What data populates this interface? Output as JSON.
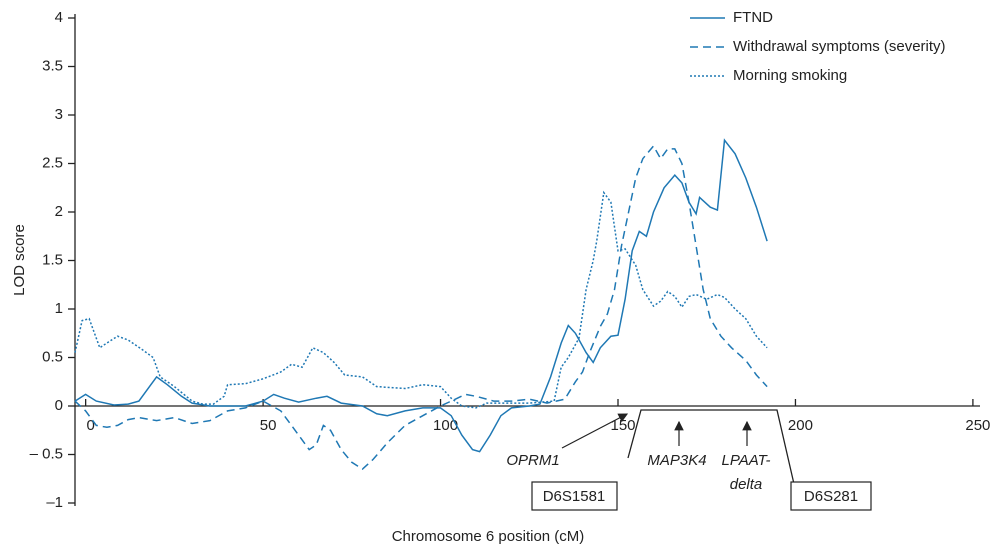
{
  "chart_data": {
    "type": "line",
    "xlabel": "Chromosome 6 position (cM)",
    "ylabel": "LOD score",
    "xlim": [
      -3,
      252
    ],
    "ylim": [
      -1,
      4
    ],
    "xticks": [
      0,
      50,
      100,
      150,
      200,
      250
    ],
    "yticks": [
      {
        "value": -1,
        "label": "–1"
      },
      {
        "value": -0.5,
        "label": "– 0.5"
      },
      0,
      0.5,
      1,
      1.5,
      2,
      2.5,
      3,
      3.5,
      4
    ],
    "legend": "upper right",
    "series": [
      {
        "name": "FTND",
        "color": "#1f78b4",
        "dash": "solid",
        "x": [
          -3,
          0,
          3,
          8,
          12,
          15,
          18,
          20,
          23,
          27,
          30,
          35,
          45,
          50,
          53,
          56,
          60,
          65,
          68,
          72,
          78,
          82,
          85,
          90,
          95,
          100,
          103,
          106,
          109,
          111,
          114,
          117,
          120,
          125,
          128,
          131,
          134,
          136,
          138,
          141,
          143,
          145,
          148,
          150,
          152,
          154,
          156,
          158,
          160,
          163,
          166,
          168,
          170,
          172,
          173,
          176,
          178,
          180,
          183,
          186,
          189,
          192
        ],
        "y": [
          0.05,
          0.12,
          0.05,
          0.01,
          0.02,
          0.05,
          0.2,
          0.3,
          0.22,
          0.1,
          0.03,
          0,
          0,
          0.05,
          0.12,
          0.08,
          0.04,
          0.08,
          0.1,
          0.03,
          0,
          -0.08,
          -0.1,
          -0.05,
          -0.02,
          -0.02,
          -0.1,
          -0.3,
          -0.45,
          -0.47,
          -0.3,
          -0.1,
          -0.02,
          0,
          0.02,
          0.3,
          0.65,
          0.83,
          0.75,
          0.55,
          0.45,
          0.6,
          0.72,
          0.73,
          1.1,
          1.6,
          1.8,
          1.75,
          2.0,
          2.25,
          2.38,
          2.3,
          2.1,
          1.98,
          2.15,
          2.05,
          2.02,
          2.74,
          2.6,
          2.35,
          2.05,
          1.7
        ]
      },
      {
        "name": "Withdrawal symptoms (severity)",
        "color": "#1f78b4",
        "dash": "dashed",
        "x": [
          -3,
          0,
          3,
          6,
          9,
          12,
          15,
          20,
          25,
          30,
          35,
          40,
          45,
          50,
          55,
          60,
          63,
          65,
          67,
          69,
          72,
          75,
          78,
          81,
          85,
          90,
          95,
          100,
          103,
          107,
          110,
          115,
          120,
          125,
          130,
          135,
          138,
          140,
          142,
          145,
          147,
          149,
          151,
          153,
          155,
          157,
          160,
          162,
          164,
          166,
          168,
          170,
          172,
          174,
          176,
          179,
          182,
          186,
          189,
          192
        ],
        "y": [
          0.05,
          -0.05,
          -0.2,
          -0.22,
          -0.2,
          -0.14,
          -0.12,
          -0.15,
          -0.12,
          -0.18,
          -0.15,
          -0.05,
          -0.02,
          0.05,
          -0.05,
          -0.3,
          -0.45,
          -0.4,
          -0.2,
          -0.25,
          -0.45,
          -0.58,
          -0.65,
          -0.55,
          -0.38,
          -0.2,
          -0.1,
          0,
          0.05,
          0.12,
          0.1,
          0.05,
          0.05,
          0.07,
          0.03,
          0.07,
          0.25,
          0.35,
          0.55,
          0.82,
          0.95,
          1.2,
          1.65,
          2.0,
          2.35,
          2.55,
          2.68,
          2.55,
          2.65,
          2.65,
          2.5,
          2.1,
          1.65,
          1.2,
          0.9,
          0.72,
          0.6,
          0.47,
          0.32,
          0.2
        ]
      },
      {
        "name": "Morning smoking",
        "color": "#1f78b4",
        "dash": "dotted",
        "x": [
          -3,
          -1,
          1,
          4,
          6,
          9,
          12,
          16,
          19,
          21,
          25,
          30,
          33,
          36,
          39,
          40,
          45,
          50,
          55,
          58,
          61,
          64,
          67,
          70,
          73,
          78,
          82,
          90,
          95,
          100,
          103,
          106,
          110,
          113,
          118,
          125,
          132,
          134,
          136,
          139,
          141,
          143,
          144,
          146,
          148,
          150,
          152,
          155,
          157,
          160,
          162,
          164,
          166,
          168,
          170,
          172,
          175,
          178,
          180,
          183,
          186,
          189,
          192
        ],
        "y": [
          0.55,
          0.88,
          0.9,
          0.6,
          0.65,
          0.72,
          0.68,
          0.58,
          0.5,
          0.3,
          0.2,
          0.05,
          0.02,
          0.02,
          0.1,
          0.22,
          0.23,
          0.28,
          0.35,
          0.43,
          0.4,
          0.6,
          0.55,
          0.45,
          0.32,
          0.3,
          0.2,
          0.18,
          0.22,
          0.2,
          0.08,
          0,
          -0.02,
          0.03,
          0.03,
          0.03,
          0.05,
          0.4,
          0.5,
          0.7,
          1.2,
          1.5,
          1.7,
          2.2,
          2.1,
          1.6,
          1.62,
          1.45,
          1.2,
          1.03,
          1.08,
          1.18,
          1.13,
          1.02,
          1.13,
          1.15,
          1.1,
          1.15,
          1.12,
          1.0,
          0.9,
          0.72,
          0.6
        ]
      }
    ],
    "annotations": [
      "OPRM1",
      "MAP3K4",
      "LPAAT-",
      "delta",
      "D6S1581",
      "D6S281"
    ]
  }
}
